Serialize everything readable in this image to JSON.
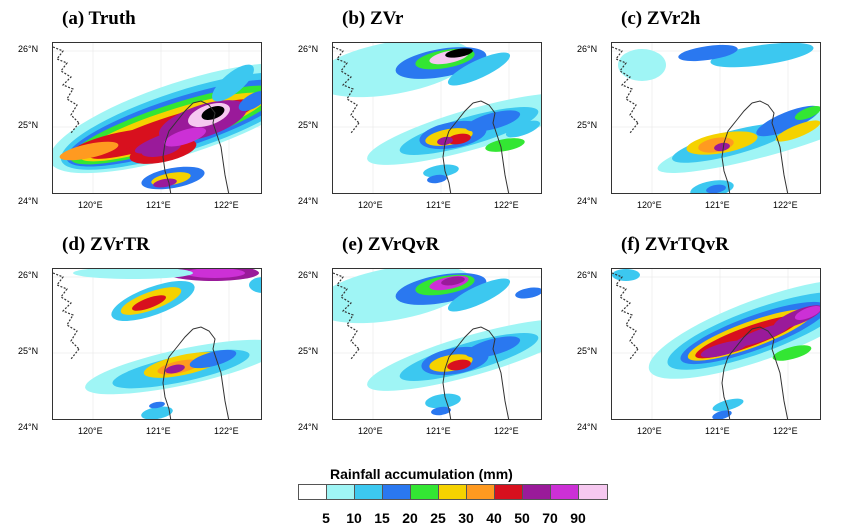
{
  "panels": [
    {
      "id": "a",
      "title": "(a) Truth",
      "pattern": "truth"
    },
    {
      "id": "b",
      "title": "(b) ZVr",
      "pattern": "zvr"
    },
    {
      "id": "c",
      "title": "(c) ZVr2h",
      "pattern": "zvr2h"
    },
    {
      "id": "d",
      "title": "(d) ZVrTR",
      "pattern": "zvrtr"
    },
    {
      "id": "e",
      "title": "(e) ZVrQvR",
      "pattern": "zvrqvr"
    },
    {
      "id": "f",
      "title": "(f) ZVrTQvR",
      "pattern": "zvrtqvr"
    }
  ],
  "axes": {
    "lat_labels": [
      "26°N",
      "25°N",
      "24°N"
    ],
    "lon_labels": [
      "120°E",
      "121°E",
      "122°E"
    ]
  },
  "legend": {
    "title": "Rainfall accumulation  (mm)",
    "levels": [
      "5",
      "10",
      "15",
      "20",
      "25",
      "30",
      "40",
      "50",
      "70",
      "90"
    ],
    "colors": [
      "#ffffff",
      "#9ff5f5",
      "#3cc8f0",
      "#2a78f0",
      "#33e633",
      "#f5d200",
      "#ff9a20",
      "#d8101e",
      "#9a1a9a",
      "#cc30d6",
      "#f6c8f0"
    ]
  }
}
